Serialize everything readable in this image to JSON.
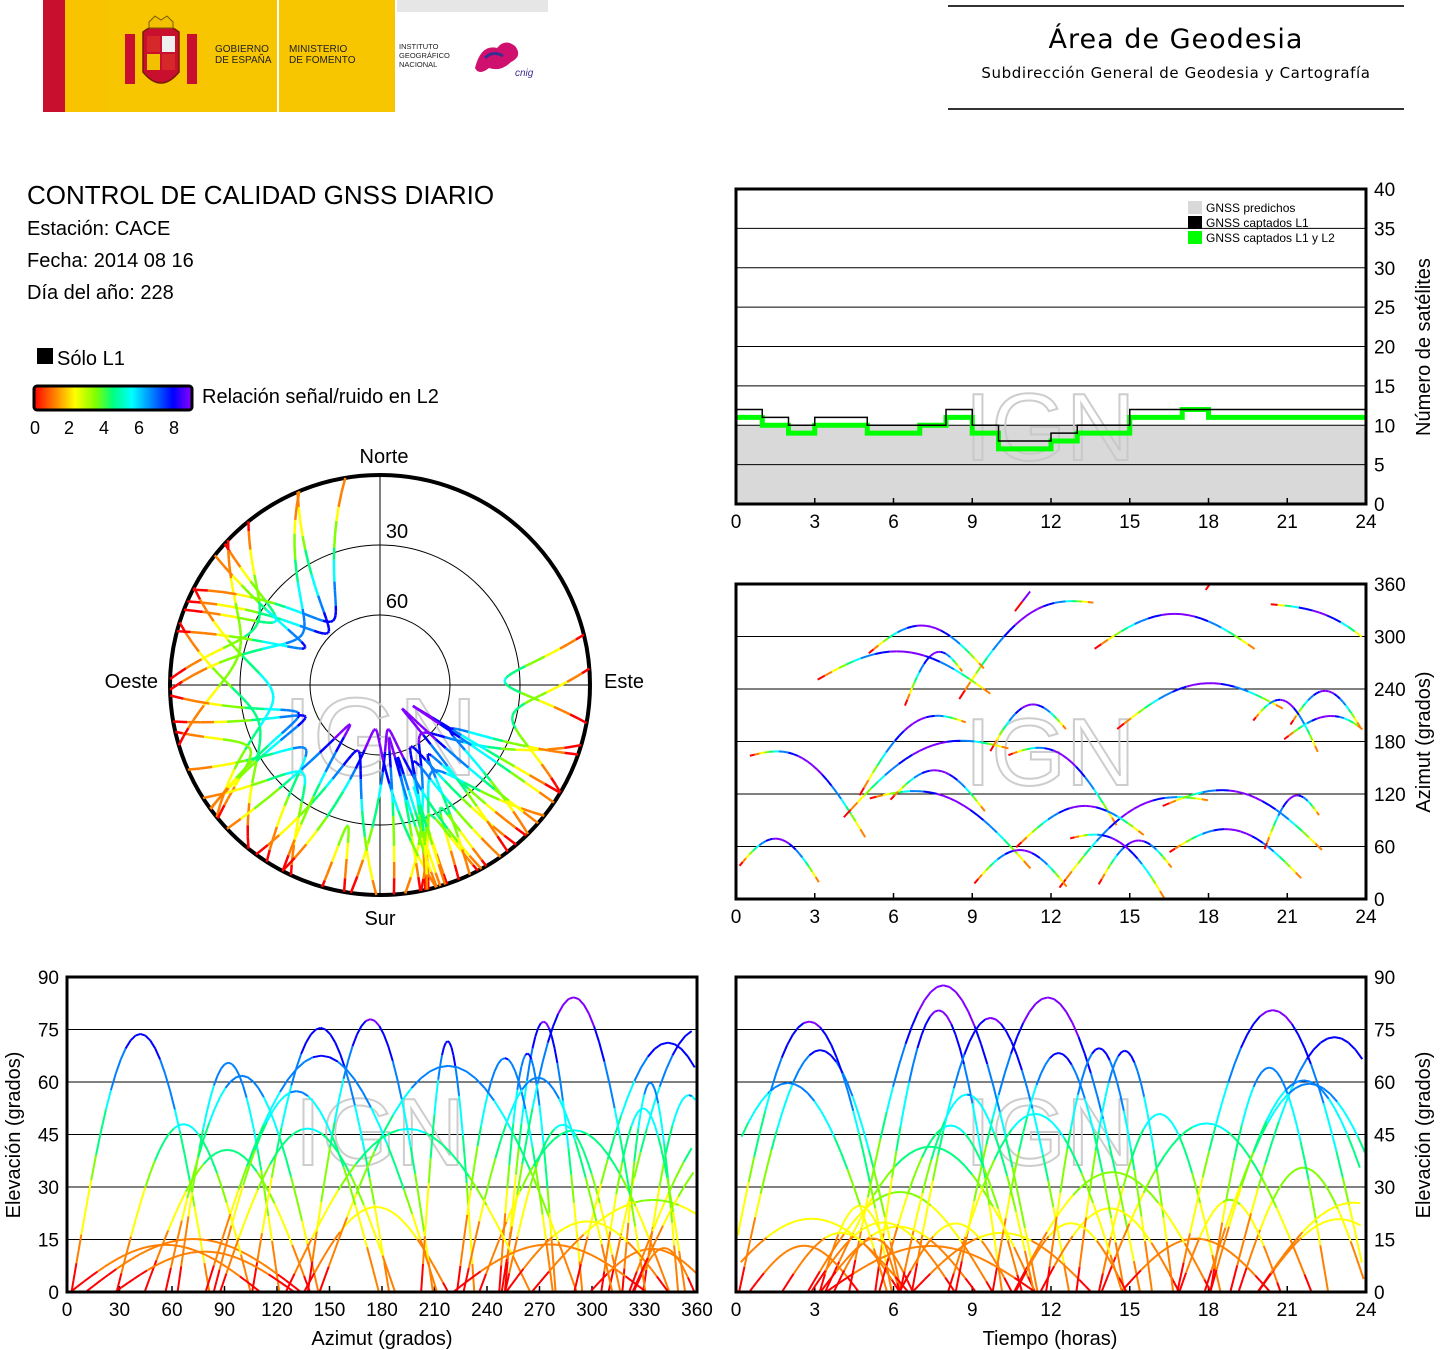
{
  "header": {
    "gobierno": [
      "GOBIERNO",
      "DE ESPAÑA"
    ],
    "ministerio": [
      "MINISTERIO",
      "DE FOMENTO"
    ],
    "instituto": [
      "INSTITUTO",
      "GEOGRÁFICO",
      "NACIONAL"
    ],
    "cnig": "cnig",
    "area_title": "Área de Geodesia",
    "area_subtitle": "Subdirección General de Geodesia y Cartografía"
  },
  "report": {
    "title": "CONTROL DE CALIDAD GNSS DIARIO",
    "station": "Estación: CACE",
    "date": "Fecha: 2014 08 16",
    "doy": "Día del año: 228"
  },
  "legend": {
    "l1_only": "Sólo L1",
    "snr_label": "Relación señal/ruido en L2",
    "snr_ticks": [
      "0",
      "2",
      "4",
      "6",
      "8"
    ]
  },
  "watermark": "IGN",
  "colors": {
    "snr_scale": [
      "#ff0000",
      "#ff8000",
      "#ffff00",
      "#80ff00",
      "#00ff80",
      "#00ffff",
      "#0080ff",
      "#0000ff",
      "#8000ff"
    ],
    "l1_only": "#000000",
    "predicted": "#d9d9d9",
    "captured_l1": "#000000",
    "captured_l1l2": "#00ff00"
  },
  "chart_data": [
    {
      "id": "satellite-count",
      "type": "area",
      "xlabel": "",
      "ylabel": "Número de satélites",
      "xlim": [
        0,
        24
      ],
      "ylim": [
        0,
        40
      ],
      "xticks": [
        "0",
        "3",
        "6",
        "9",
        "12",
        "15",
        "18",
        "21",
        "24"
      ],
      "yticks": [
        "0",
        "5",
        "10",
        "15",
        "20",
        "25",
        "30",
        "35",
        "40"
      ],
      "grid": "horizontal",
      "legend_position": "top-right",
      "legend": [
        "GNSS predichos",
        "GNSS captados L1",
        "GNSS captados L1 y L2"
      ],
      "x": [
        0,
        1,
        2,
        3,
        4,
        5,
        6,
        7,
        8,
        9,
        10,
        11,
        12,
        13,
        14,
        15,
        16,
        17,
        18,
        19,
        20,
        21,
        22,
        23,
        24
      ],
      "series": [
        {
          "name": "GNSS predichos",
          "values": [
            10,
            10,
            10,
            10,
            10,
            10,
            10,
            10,
            10,
            10,
            10,
            10,
            10,
            10,
            10,
            10,
            10,
            10,
            10,
            10,
            10,
            10,
            10,
            10,
            10
          ]
        },
        {
          "name": "GNSS captados L1",
          "values": [
            12,
            11,
            10,
            11,
            11,
            10,
            10,
            10,
            12,
            10,
            8,
            8,
            9,
            10,
            10,
            12,
            12,
            12,
            12,
            12,
            12,
            12,
            12,
            12,
            12
          ]
        },
        {
          "name": "GNSS captados L1 y L2",
          "values": [
            11,
            10,
            9,
            10,
            10,
            9,
            9,
            10,
            11,
            9,
            7,
            7,
            8,
            9,
            9,
            11,
            11,
            12,
            11,
            11,
            11,
            11,
            11,
            11,
            11
          ]
        }
      ]
    },
    {
      "id": "azimuth-vs-time",
      "type": "scatter",
      "xlabel": "",
      "ylabel": "Azimut (grados)",
      "xlim": [
        0,
        24
      ],
      "ylim": [
        0,
        360
      ],
      "xticks": [
        "0",
        "3",
        "6",
        "9",
        "12",
        "15",
        "18",
        "21",
        "24"
      ],
      "yticks": [
        "0",
        "60",
        "120",
        "180",
        "240",
        "300",
        "360"
      ],
      "grid": "horizontal"
    },
    {
      "id": "skyplot",
      "type": "scatter",
      "title": "",
      "directions": {
        "north": "Norte",
        "south": "Sur",
        "east": "Este",
        "west": "Oeste"
      },
      "ring_labels": [
        "30",
        "60"
      ]
    },
    {
      "id": "elevation-vs-azimuth",
      "type": "scatter",
      "xlabel": "Azimut (grados)",
      "ylabel": "Elevación (grados)",
      "xlim": [
        0,
        360
      ],
      "ylim": [
        0,
        90
      ],
      "xticks": [
        "0",
        "30",
        "60",
        "90",
        "120",
        "150",
        "180",
        "210",
        "240",
        "270",
        "300",
        "330",
        "360"
      ],
      "yticks": [
        "0",
        "15",
        "30",
        "45",
        "60",
        "75",
        "90"
      ],
      "grid": "horizontal"
    },
    {
      "id": "elevation-vs-time",
      "type": "line",
      "xlabel": "Tiempo (horas)",
      "ylabel": "Elevación (grados)",
      "xlim": [
        0,
        24
      ],
      "ylim": [
        0,
        90
      ],
      "xticks": [
        "0",
        "3",
        "6",
        "9",
        "12",
        "15",
        "18",
        "21",
        "24"
      ],
      "yticks": [
        "0",
        "15",
        "30",
        "45",
        "60",
        "75",
        "90"
      ],
      "grid": "horizontal"
    }
  ]
}
